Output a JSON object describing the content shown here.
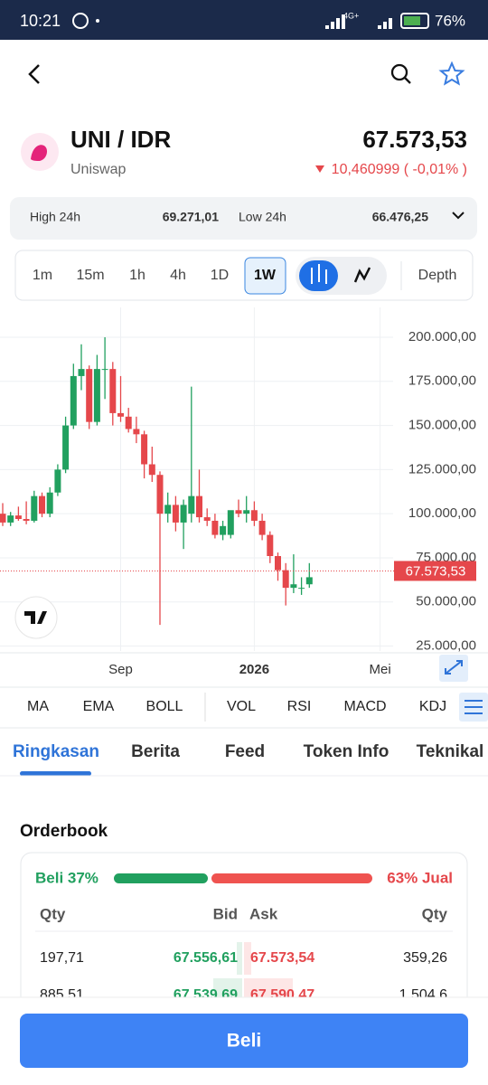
{
  "status": {
    "time": "10:21",
    "battery": "76%",
    "net1": "4G+"
  },
  "pair": {
    "symbol": "UNI / IDR",
    "name": "Uniswap",
    "price": "67.573,53",
    "change": "10,460999 ( -0,01% )"
  },
  "stats": {
    "high_label": "High 24h",
    "high": "69.271,01",
    "low_label": "Low 24h",
    "low": "66.476,25"
  },
  "timeframes": {
    "items": [
      "1m",
      "15m",
      "1h",
      "4h",
      "1D",
      "1W"
    ],
    "selected": 5,
    "depth": "Depth"
  },
  "chart_data": {
    "type": "candlestick",
    "categories": [
      null,
      null,
      null,
      null,
      null,
      null,
      null,
      null,
      null,
      null,
      null,
      null,
      null,
      null,
      null,
      "Sep",
      null,
      null,
      null,
      null,
      null,
      null,
      null,
      null,
      null,
      null,
      null,
      null,
      null,
      null,
      null,
      null,
      "2026",
      null,
      null,
      null,
      null,
      null,
      null,
      null,
      null,
      null,
      null,
      null,
      null,
      null,
      null,
      null,
      "Mei",
      null
    ],
    "ohlc": [
      [
        100000,
        106000,
        93000,
        95000
      ],
      [
        95000,
        101000,
        93000,
        99000
      ],
      [
        99000,
        104000,
        96000,
        97000
      ],
      [
        97000,
        107000,
        94000,
        96000
      ],
      [
        96000,
        113000,
        95000,
        110000
      ],
      [
        110000,
        112000,
        98000,
        100000
      ],
      [
        100000,
        115000,
        98000,
        112000
      ],
      [
        112000,
        128000,
        110000,
        125000
      ],
      [
        125000,
        155000,
        123000,
        150000
      ],
      [
        150000,
        185000,
        148000,
        178000
      ],
      [
        178000,
        196000,
        170000,
        182000
      ],
      [
        182000,
        184000,
        148000,
        152000
      ],
      [
        152000,
        190000,
        150000,
        182000
      ],
      [
        182000,
        200000,
        165000,
        182000
      ],
      [
        182000,
        186000,
        150000,
        157000
      ],
      [
        157000,
        178000,
        152000,
        155000
      ],
      [
        155000,
        160000,
        146000,
        148000
      ],
      [
        148000,
        155000,
        140000,
        145000
      ],
      [
        145000,
        147000,
        120000,
        128000
      ],
      [
        128000,
        138000,
        118000,
        122000
      ],
      [
        122000,
        124000,
        37000,
        100000
      ],
      [
        100000,
        112000,
        95000,
        105000
      ],
      [
        105000,
        110000,
        90000,
        95000
      ],
      [
        95000,
        108000,
        80000,
        105000
      ],
      [
        100000,
        172000,
        95000,
        110000
      ],
      [
        110000,
        125000,
        95000,
        98000
      ],
      [
        98000,
        103000,
        93000,
        96000
      ],
      [
        96000,
        100000,
        86000,
        88000
      ],
      [
        88000,
        96000,
        85000,
        93000
      ],
      [
        88000,
        100000,
        86000,
        102000
      ],
      [
        102000,
        108000,
        98000,
        100000
      ],
      [
        100000,
        110000,
        95000,
        102000
      ],
      [
        102000,
        107000,
        93000,
        96000
      ],
      [
        96000,
        100000,
        85000,
        88000
      ],
      [
        88000,
        90000,
        72000,
        76000
      ],
      [
        76000,
        78000,
        62000,
        68000
      ],
      [
        68000,
        72000,
        48000,
        58000
      ],
      [
        58000,
        77000,
        55000,
        60000
      ],
      [
        58000,
        64000,
        54000,
        58000
      ],
      [
        60000,
        72000,
        58000,
        64000
      ],
      null,
      null,
      null,
      null,
      null,
      null,
      null,
      null,
      null,
      null
    ],
    "up_color": "#21a05f",
    "down_color": "#e5474b",
    "ylim": [
      22200,
      216900
    ],
    "yticks": [
      {
        "value": 200000,
        "label": "200.000,00"
      },
      {
        "value": 175000,
        "label": "175.000,00"
      },
      {
        "value": 150000,
        "label": "150.000,00"
      },
      {
        "value": 125000,
        "label": "125.000,00"
      },
      {
        "value": 100000,
        "label": "100.000,00"
      },
      {
        "value": 75000,
        "label": "75.000,00"
      },
      {
        "value": 50000,
        "label": "50.000,00"
      },
      {
        "value": 25000,
        "label": "25.000,00"
      }
    ],
    "last_price": {
      "value": 67573.53,
      "label": "67.573,53"
    },
    "grid": true
  },
  "indicators": [
    "MA",
    "EMA",
    "BOLL",
    "VOL",
    "RSI",
    "MACD",
    "KDJ"
  ],
  "tabs": {
    "items": [
      "Ringkasan",
      "Berita",
      "Feed",
      "Token Info",
      "Teknikal"
    ],
    "selected": 0
  },
  "orderbook": {
    "title": "Orderbook",
    "buy": "Beli 37%",
    "sell": "63% Jual",
    "headers": [
      "Qty",
      "Bid",
      "Ask",
      "Qty"
    ],
    "rows": [
      [
        "197,71",
        "67.556,61",
        "67.573,54",
        "359,26"
      ],
      [
        "885,51",
        "67.539,69",
        "67.590,47",
        "1.504,6"
      ]
    ]
  },
  "button": "Beli"
}
